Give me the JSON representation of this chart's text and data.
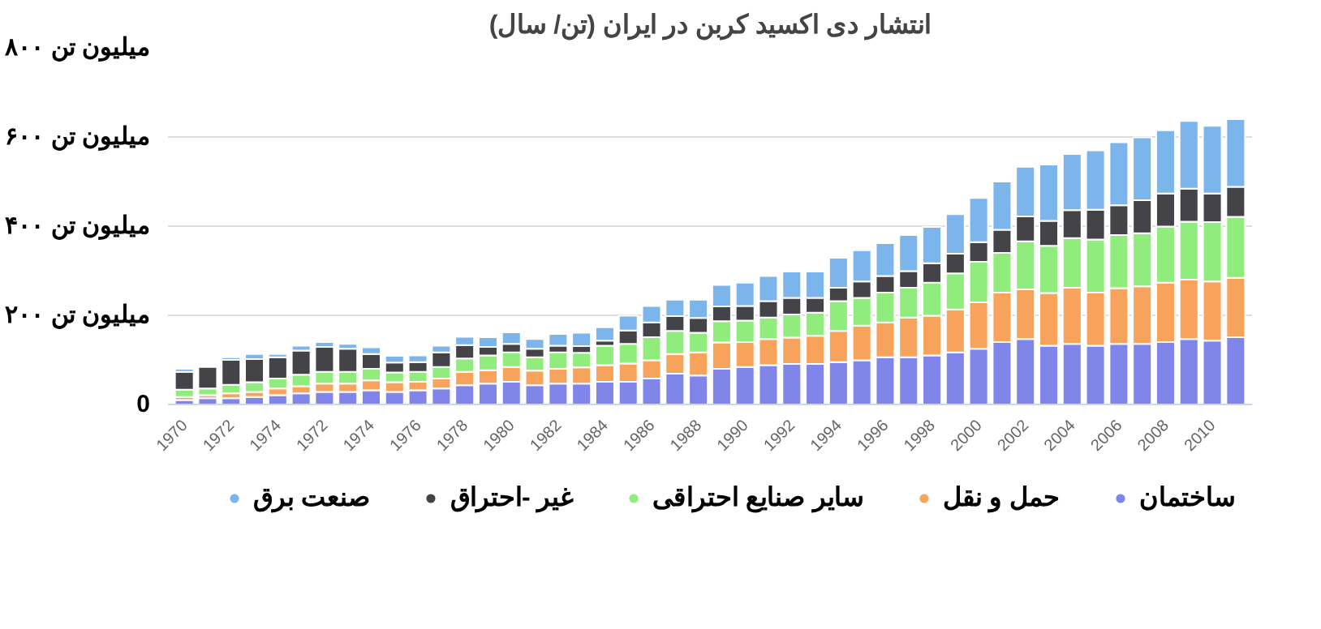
{
  "chart_data": {
    "type": "bar",
    "stacked": true,
    "title": "انتشار دی اکسید کربن در ایران (تن/ سال)",
    "categories": [
      "1970",
      null,
      "1972",
      null,
      "1974",
      null,
      "1972",
      null,
      "1974",
      null,
      "1976",
      null,
      "1978",
      null,
      "1980",
      null,
      "1982",
      null,
      "1984",
      null,
      "1986",
      null,
      "1988",
      null,
      "1990",
      null,
      "1992",
      null,
      "1994",
      null,
      "1996",
      null,
      "1998",
      null,
      "2000",
      null,
      "2002",
      null,
      "2004",
      null,
      "2006",
      null,
      "2008",
      null,
      "2010",
      null
    ],
    "series": [
      {
        "name": "ساختمان",
        "color": "#8085e9",
        "values": [
          10,
          14,
          14,
          17,
          21,
          25,
          28,
          28,
          32,
          28,
          32,
          36,
          43,
          47,
          51,
          43,
          47,
          47,
          51,
          51,
          58,
          69,
          65,
          80,
          84,
          88,
          91,
          91,
          95,
          99,
          106,
          106,
          110,
          117,
          125,
          140,
          147,
          132,
          136,
          132,
          136,
          136,
          140,
          147,
          143,
          151
        ]
      },
      {
        "name": "حمل و نقل",
        "color": "#f7a35c",
        "values": [
          7,
          7,
          11,
          11,
          15,
          16,
          19,
          19,
          22,
          22,
          19,
          22,
          30,
          30,
          33,
          33,
          33,
          36,
          37,
          41,
          41,
          44,
          52,
          59,
          56,
          59,
          59,
          63,
          70,
          78,
          78,
          89,
          89,
          96,
          104,
          111,
          111,
          118,
          126,
          119,
          125,
          129,
          133,
          133,
          133,
          133
        ]
      },
      {
        "name": "سایر صنایع احتراقی",
        "color": "#90ed7d",
        "values": [
          16,
          15,
          19,
          22,
          22,
          26,
          26,
          26,
          26,
          22,
          22,
          26,
          30,
          33,
          33,
          30,
          37,
          33,
          44,
          44,
          52,
          52,
          44,
          48,
          48,
          48,
          52,
          52,
          67,
          62,
          67,
          67,
          74,
          81,
          91,
          89,
          108,
          106,
          111,
          119,
          119,
          119,
          126,
          130,
          133,
          137
        ]
      },
      {
        "name": "غیر -احتراق",
        "color": "#434348",
        "values": [
          40,
          48,
          56,
          52,
          48,
          54,
          56,
          52,
          33,
          22,
          22,
          33,
          30,
          19,
          19,
          19,
          15,
          15,
          11,
          30,
          33,
          33,
          33,
          33,
          33,
          37,
          37,
          33,
          30,
          37,
          37,
          37,
          44,
          44,
          44,
          52,
          56,
          56,
          63,
          67,
          67,
          74,
          74,
          74,
          64,
          67
        ]
      },
      {
        "name": "صنعت برق",
        "color": "#7cb5ec",
        "values": [
          7,
          0,
          6,
          11,
          7,
          11,
          11,
          11,
          15,
          15,
          15,
          15,
          19,
          22,
          26,
          22,
          26,
          30,
          30,
          33,
          37,
          37,
          41,
          48,
          52,
          56,
          59,
          59,
          67,
          70,
          74,
          81,
          81,
          89,
          99,
          108,
          111,
          126,
          126,
          133,
          141,
          141,
          142,
          152,
          152,
          152
        ]
      }
    ],
    "ylim": [
      0,
      800
    ],
    "yticks": [
      0,
      {
        "value": 200,
        "label": "۲۰۰ میلیون تن"
      },
      {
        "value": 400,
        "label": "۴۰۰ میلیون تن"
      },
      {
        "value": 600,
        "label": "۶۰۰ میلیون تن"
      },
      {
        "value": 800,
        "label": "۸۰۰ میلیون تن"
      }
    ],
    "grid": "y",
    "legend": "bottom"
  }
}
